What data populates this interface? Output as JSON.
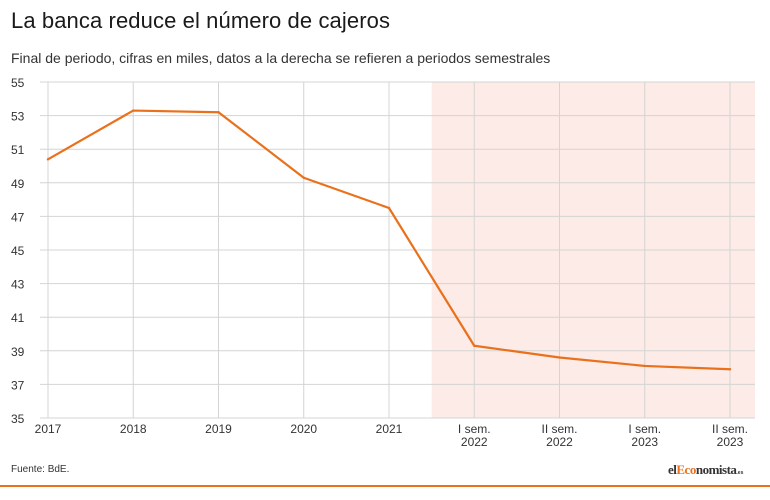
{
  "header": {
    "title": "La banca reduce el número de cajeros",
    "subtitle": "Final de periodo, cifras en miles, datos a la derecha se refieren a periodos semestrales"
  },
  "footer": {
    "source": "Fuente: BdE.",
    "brand_prefix": "el",
    "brand_highlight": "Eco",
    "brand_main": "nomista",
    "brand_suffix": ".es"
  },
  "colors": {
    "line": "#e9711c",
    "shaded_region": "#fcebe6",
    "grid": "#d4d4d4"
  },
  "chart_data": {
    "type": "line",
    "categories": [
      [
        "2017"
      ],
      [
        "2018"
      ],
      [
        "2019"
      ],
      [
        "2020"
      ],
      [
        "2021"
      ],
      [
        "I sem.",
        "2022"
      ],
      [
        "II sem.",
        "2022"
      ],
      [
        "I sem.",
        "2023"
      ],
      [
        "II sem.",
        "2023"
      ]
    ],
    "series": [
      {
        "values": [
          50.4,
          53.3,
          53.2,
          49.3,
          47.5,
          39.3,
          38.6,
          38.1,
          37.9
        ]
      }
    ],
    "ylim": [
      35,
      55
    ],
    "yticks": [
      35,
      37,
      39,
      41,
      43,
      45,
      47,
      49,
      51,
      53,
      55
    ],
    "shaded_from_category": 5,
    "grid": true,
    "xlabel": "",
    "ylabel": ""
  }
}
